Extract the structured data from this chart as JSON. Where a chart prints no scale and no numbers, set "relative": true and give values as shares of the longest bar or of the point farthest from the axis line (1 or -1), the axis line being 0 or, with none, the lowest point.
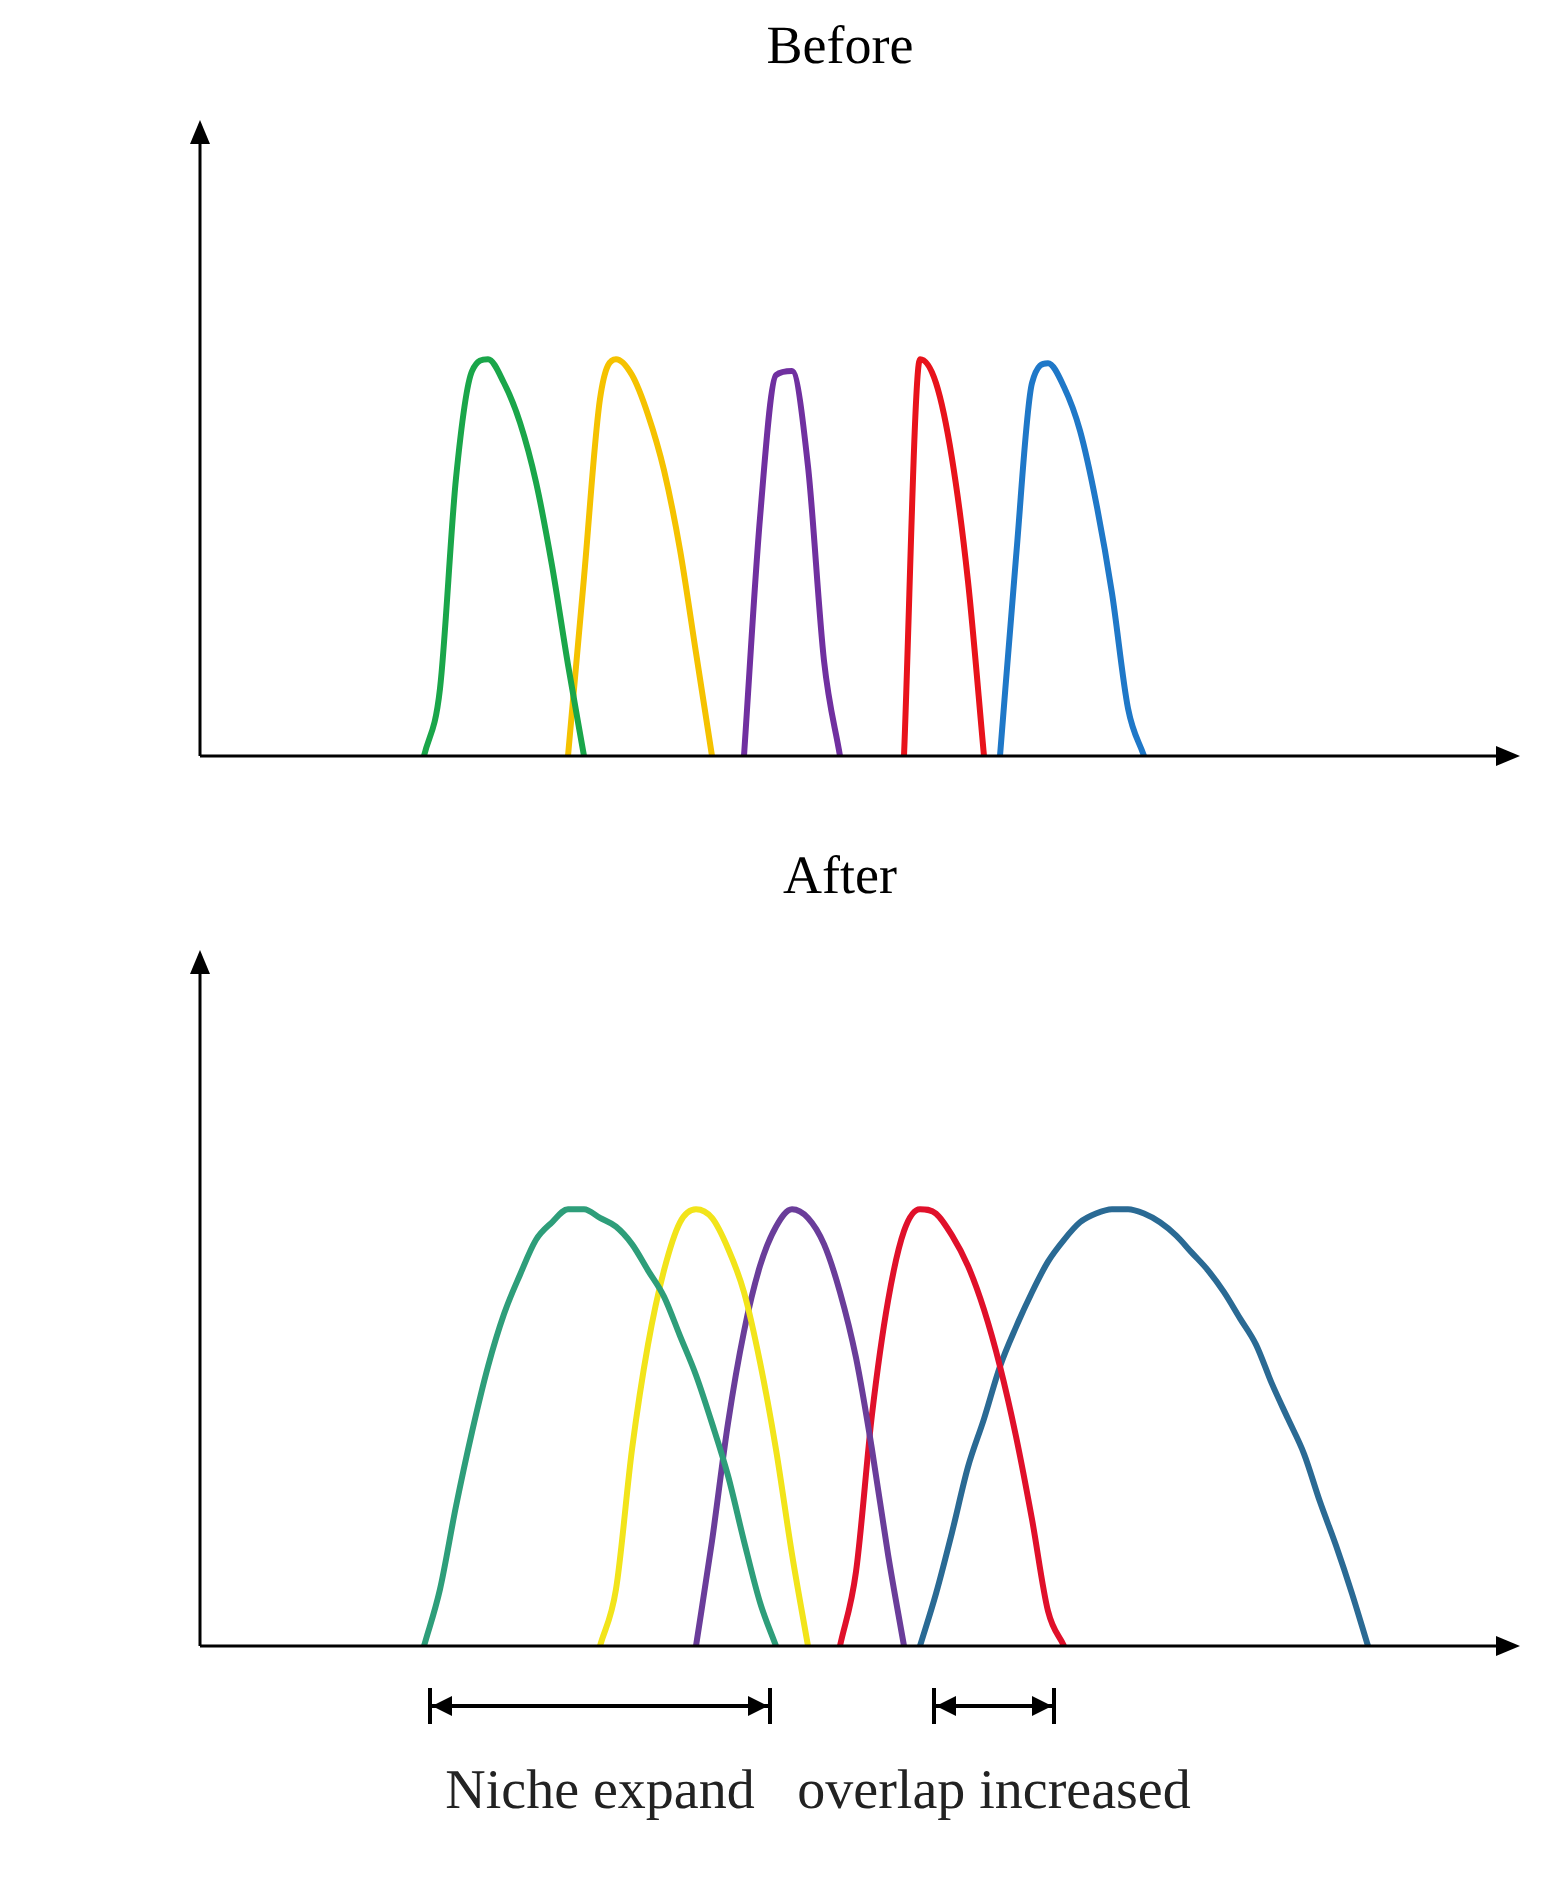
{
  "chart_data": [
    {
      "type": "line",
      "title": "Before",
      "relative": true,
      "categories": [
        null,
        null,
        null,
        null,
        null,
        null,
        null,
        null,
        null,
        null,
        null,
        null,
        null,
        null,
        null,
        null,
        null,
        null,
        null,
        null,
        null,
        null,
        null,
        null,
        null,
        null,
        null,
        null,
        null,
        null,
        null,
        null,
        null,
        null,
        null,
        null,
        null,
        null,
        null,
        null,
        null,
        null,
        null,
        null,
        null,
        null,
        null,
        null,
        null,
        null,
        null,
        null,
        null,
        null,
        null,
        null,
        null,
        null,
        null,
        null,
        null,
        null,
        null,
        null,
        null,
        null,
        null,
        null,
        null,
        null,
        null,
        null,
        null,
        null,
        null,
        null,
        null,
        null,
        null,
        null,
        null
      ],
      "series": [
        {
          "color": "#1aa64a",
          "values": [
            null,
            null,
            null,
            null,
            null,
            null,
            null,
            null,
            null,
            null,
            null,
            null,
            null,
            null,
            0,
            0.17,
            0.7,
            0.97,
            1,
            0.94,
            0.84,
            0.69,
            0.48,
            0.23,
            0,
            null,
            null,
            null,
            null,
            null,
            null,
            null,
            null,
            null,
            null,
            null,
            null,
            null,
            null,
            null,
            null,
            null,
            null,
            null,
            null,
            null,
            null,
            null,
            null,
            null,
            null,
            null,
            null,
            null,
            null,
            null,
            null,
            null,
            null,
            null,
            null,
            null,
            null,
            null,
            null,
            null,
            null,
            null,
            null,
            null,
            null,
            null,
            null,
            null,
            null,
            null,
            null,
            null,
            null,
            null,
            null
          ]
        },
        {
          "color": "#f5c200",
          "values": [
            null,
            null,
            null,
            null,
            null,
            null,
            null,
            null,
            null,
            null,
            null,
            null,
            null,
            null,
            null,
            null,
            null,
            null,
            null,
            null,
            null,
            null,
            null,
            0,
            0.45,
            0.9,
            1,
            0.96,
            0.86,
            0.72,
            0.52,
            0.26,
            0,
            null,
            null,
            null,
            null,
            null,
            null,
            null,
            null,
            null,
            null,
            null,
            null,
            null,
            null,
            null,
            null,
            null,
            null,
            null,
            null,
            null,
            null,
            null,
            null,
            null,
            null,
            null,
            null,
            null,
            null,
            null,
            null,
            null,
            null,
            null,
            null,
            null,
            null,
            null,
            null,
            null,
            null,
            null,
            null,
            null,
            null,
            null,
            null
          ]
        },
        {
          "color": "#7030a0",
          "values": [
            null,
            null,
            null,
            null,
            null,
            null,
            null,
            null,
            null,
            null,
            null,
            null,
            null,
            null,
            null,
            null,
            null,
            null,
            null,
            null,
            null,
            null,
            null,
            null,
            null,
            null,
            null,
            null,
            null,
            null,
            null,
            null,
            null,
            null,
            0,
            0.6,
            0.96,
            0.97,
            0.73,
            0.24,
            0,
            null,
            null,
            null,
            null,
            null,
            null,
            null,
            null,
            null,
            null,
            null,
            null,
            null,
            null,
            null,
            null,
            null,
            null,
            null,
            null,
            null,
            null,
            null,
            null,
            null,
            null,
            null,
            null,
            null,
            null,
            null,
            null,
            null,
            null,
            null,
            null,
            null,
            null,
            null,
            null
          ]
        },
        {
          "color": "#e8131b",
          "values": [
            null,
            null,
            null,
            null,
            null,
            null,
            null,
            null,
            null,
            null,
            null,
            null,
            null,
            null,
            null,
            null,
            null,
            null,
            null,
            null,
            null,
            null,
            null,
            null,
            null,
            null,
            null,
            null,
            null,
            null,
            null,
            null,
            null,
            null,
            null,
            null,
            null,
            null,
            null,
            null,
            null,
            null,
            null,
            null,
            0,
            1,
            0.94,
            0.75,
            0.44,
            0,
            null,
            null,
            null,
            null,
            null,
            null,
            null,
            null,
            null,
            null,
            null,
            null,
            null,
            null,
            null,
            null,
            null,
            null,
            null,
            null,
            null,
            null,
            null,
            null,
            null,
            null,
            null,
            null,
            null,
            null,
            null
          ]
        },
        {
          "color": "#1f78c8",
          "values": [
            null,
            null,
            null,
            null,
            null,
            null,
            null,
            null,
            null,
            null,
            null,
            null,
            null,
            null,
            null,
            null,
            null,
            null,
            null,
            null,
            null,
            null,
            null,
            null,
            null,
            null,
            null,
            null,
            null,
            null,
            null,
            null,
            null,
            null,
            null,
            null,
            null,
            null,
            null,
            null,
            null,
            null,
            null,
            null,
            null,
            null,
            null,
            null,
            null,
            null,
            0,
            0.5,
            0.94,
            0.99,
            0.93,
            0.82,
            0.64,
            0.41,
            0.12,
            0,
            null,
            null,
            null,
            null,
            null,
            null,
            null,
            null,
            null,
            null,
            null,
            null,
            null,
            null,
            null,
            null,
            null,
            null,
            null,
            null,
            null
          ]
        }
      ]
    },
    {
      "type": "line",
      "title": "After",
      "relative": true,
      "categories": [
        null,
        null,
        null,
        null,
        null,
        null,
        null,
        null,
        null,
        null,
        null,
        null,
        null,
        null,
        null,
        null,
        null,
        null,
        null,
        null,
        null,
        null,
        null,
        null,
        null,
        null,
        null,
        null,
        null,
        null,
        null,
        null,
        null,
        null,
        null,
        null,
        null,
        null,
        null,
        null,
        null,
        null,
        null,
        null,
        null,
        null,
        null,
        null,
        null,
        null,
        null,
        null,
        null,
        null,
        null,
        null,
        null,
        null,
        null,
        null,
        null,
        null,
        null,
        null,
        null,
        null,
        null,
        null,
        null,
        null,
        null,
        null,
        null,
        null,
        null,
        null,
        null,
        null,
        null,
        null,
        null
      ],
      "series": [
        {
          "color": "#2e9e7a",
          "values": [
            null,
            null,
            null,
            null,
            null,
            null,
            null,
            null,
            null,
            null,
            null,
            null,
            null,
            null,
            0,
            0.13,
            0.32,
            0.49,
            0.64,
            0.76,
            0.85,
            0.93,
            0.97,
            1,
            1,
            0.98,
            0.96,
            0.92,
            0.86,
            0.8,
            0.71,
            0.62,
            0.51,
            0.39,
            0.24,
            0.1,
            0,
            null,
            null,
            null,
            null,
            null,
            null,
            null,
            null,
            null,
            null,
            null,
            null,
            null,
            null,
            null,
            null,
            null,
            null,
            null,
            null,
            null,
            null,
            null,
            null,
            null,
            null,
            null,
            null,
            null,
            null,
            null,
            null,
            null,
            null,
            null,
            null,
            null,
            null,
            null,
            null,
            null,
            null,
            null,
            null
          ]
        },
        {
          "color": "#f2e41a",
          "values": [
            null,
            null,
            null,
            null,
            null,
            null,
            null,
            null,
            null,
            null,
            null,
            null,
            null,
            null,
            null,
            null,
            null,
            null,
            null,
            null,
            null,
            null,
            null,
            null,
            null,
            0,
            0.13,
            0.45,
            0.69,
            0.86,
            0.97,
            1,
            0.98,
            0.91,
            0.81,
            0.65,
            0.45,
            0.21,
            0,
            null,
            null,
            null,
            null,
            null,
            null,
            null,
            null,
            null,
            null,
            null,
            null,
            null,
            null,
            null,
            null,
            null,
            null,
            null,
            null,
            null,
            null,
            null,
            null,
            null,
            null,
            null,
            null,
            null,
            null,
            null,
            null,
            null,
            null,
            null,
            null,
            null,
            null,
            null,
            null,
            null,
            null
          ]
        },
        {
          "color": "#6a3d9a",
          "values": [
            null,
            null,
            null,
            null,
            null,
            null,
            null,
            null,
            null,
            null,
            null,
            null,
            null,
            null,
            null,
            null,
            null,
            null,
            null,
            null,
            null,
            null,
            null,
            null,
            null,
            null,
            null,
            null,
            null,
            null,
            null,
            0,
            0.24,
            0.51,
            0.72,
            0.87,
            0.96,
            1,
            0.98,
            0.92,
            0.81,
            0.66,
            0.45,
            0.21,
            0,
            null,
            null,
            null,
            null,
            null,
            null,
            null,
            null,
            null,
            null,
            null,
            null,
            null,
            null,
            null,
            null,
            null,
            null,
            null,
            null,
            null,
            null,
            null,
            null,
            null,
            null,
            null,
            null,
            null,
            null,
            null,
            null,
            null,
            null,
            null,
            null
          ]
        },
        {
          "color": "#e0102a",
          "values": [
            null,
            null,
            null,
            null,
            null,
            null,
            null,
            null,
            null,
            null,
            null,
            null,
            null,
            null,
            null,
            null,
            null,
            null,
            null,
            null,
            null,
            null,
            null,
            null,
            null,
            null,
            null,
            null,
            null,
            null,
            null,
            null,
            null,
            null,
            null,
            null,
            null,
            null,
            null,
            null,
            0,
            0.17,
            0.53,
            0.79,
            0.95,
            1,
            0.99,
            0.94,
            0.87,
            0.77,
            0.64,
            0.48,
            0.29,
            0.08,
            0,
            null,
            null,
            null,
            null,
            null,
            null,
            null,
            null,
            null,
            null,
            null,
            null,
            null,
            null,
            null,
            null,
            null,
            null,
            null,
            null,
            null,
            null,
            null,
            null,
            null,
            null
          ]
        },
        {
          "color": "#2a6a94",
          "values": [
            null,
            null,
            null,
            null,
            null,
            null,
            null,
            null,
            null,
            null,
            null,
            null,
            null,
            null,
            null,
            null,
            null,
            null,
            null,
            null,
            null,
            null,
            null,
            null,
            null,
            null,
            null,
            null,
            null,
            null,
            null,
            null,
            null,
            null,
            null,
            null,
            null,
            null,
            null,
            null,
            null,
            null,
            null,
            null,
            null,
            0,
            0.12,
            0.26,
            0.41,
            0.52,
            0.64,
            0.73,
            0.81,
            0.88,
            0.93,
            0.97,
            0.99,
            1,
            1,
            0.99,
            0.97,
            0.94,
            0.9,
            0.86,
            0.81,
            0.75,
            0.69,
            0.6,
            0.52,
            0.44,
            0.33,
            0.23,
            0.12,
            0,
            null,
            null,
            null,
            null,
            null,
            null,
            null
          ]
        }
      ],
      "annotations": [
        "Niche expand",
        "overlap increased"
      ]
    }
  ]
}
